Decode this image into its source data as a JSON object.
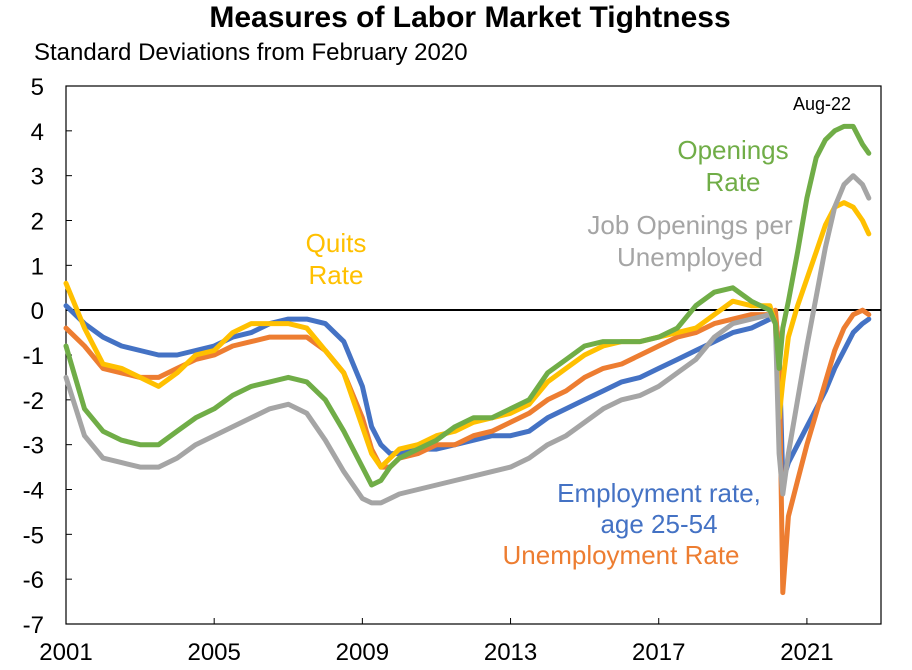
{
  "chart_data": {
    "type": "line",
    "title": "Measures of Labor Market Tightness",
    "subtitle": "Standard Deviations from February 2020",
    "ylim": [
      -7,
      5
    ],
    "yticks": [
      5,
      4,
      3,
      2,
      1,
      0,
      -1,
      -2,
      -3,
      -4,
      -5,
      -6,
      -7
    ],
    "xlim": [
      2001,
      2023
    ],
    "xticks": [
      2001,
      2005,
      2009,
      2013,
      2017,
      2021
    ],
    "series": [
      {
        "name": "Employment rate, age 25-54",
        "color": "#4472C4",
        "x": [
          2001.0,
          2001.5,
          2002.0,
          2002.5,
          2003.0,
          2003.5,
          2004.0,
          2004.5,
          2005.0,
          2005.5,
          2006.0,
          2006.5,
          2007.0,
          2007.5,
          2008.0,
          2008.5,
          2009.0,
          2009.25,
          2009.5,
          2009.75,
          2010.0,
          2010.5,
          2011.0,
          2011.5,
          2012.0,
          2012.5,
          2013.0,
          2013.5,
          2014.0,
          2014.5,
          2015.0,
          2015.5,
          2016.0,
          2016.5,
          2017.0,
          2017.5,
          2018.0,
          2018.5,
          2019.0,
          2019.5,
          2020.0,
          2020.15,
          2020.25,
          2020.35,
          2020.5,
          2020.75,
          2021.0,
          2021.25,
          2021.5,
          2021.75,
          2022.0,
          2022.25,
          2022.5,
          2022.67
        ],
        "values": [
          0.1,
          -0.3,
          -0.6,
          -0.8,
          -0.9,
          -1.0,
          -1.0,
          -0.9,
          -0.8,
          -0.6,
          -0.5,
          -0.3,
          -0.2,
          -0.2,
          -0.3,
          -0.7,
          -1.7,
          -2.6,
          -3.0,
          -3.2,
          -3.2,
          -3.1,
          -3.1,
          -3.0,
          -2.9,
          -2.8,
          -2.8,
          -2.7,
          -2.4,
          -2.2,
          -2.0,
          -1.8,
          -1.6,
          -1.5,
          -1.3,
          -1.1,
          -0.9,
          -0.7,
          -0.5,
          -0.4,
          -0.2,
          -0.1,
          -0.9,
          -3.8,
          -3.4,
          -3.0,
          -2.6,
          -2.2,
          -1.8,
          -1.3,
          -0.9,
          -0.5,
          -0.3,
          -0.2
        ]
      },
      {
        "name": "Unemployment Rate",
        "color": "#ED7D31",
        "x": [
          2001.0,
          2001.5,
          2002.0,
          2002.5,
          2003.0,
          2003.5,
          2004.0,
          2004.5,
          2005.0,
          2005.5,
          2006.0,
          2006.5,
          2007.0,
          2007.5,
          2008.0,
          2008.5,
          2009.0,
          2009.25,
          2009.5,
          2009.75,
          2010.0,
          2010.5,
          2011.0,
          2011.5,
          2012.0,
          2012.5,
          2013.0,
          2013.5,
          2014.0,
          2014.5,
          2015.0,
          2015.5,
          2016.0,
          2016.5,
          2017.0,
          2017.5,
          2018.0,
          2018.5,
          2019.0,
          2019.5,
          2020.0,
          2020.15,
          2020.25,
          2020.35,
          2020.5,
          2020.75,
          2021.0,
          2021.25,
          2021.5,
          2021.75,
          2022.0,
          2022.25,
          2022.5,
          2022.67
        ],
        "values": [
          -0.4,
          -0.8,
          -1.3,
          -1.4,
          -1.5,
          -1.5,
          -1.3,
          -1.1,
          -1.0,
          -0.8,
          -0.7,
          -0.6,
          -0.6,
          -0.6,
          -0.9,
          -1.4,
          -2.4,
          -3.1,
          -3.5,
          -3.5,
          -3.3,
          -3.2,
          -3.0,
          -3.0,
          -2.8,
          -2.7,
          -2.5,
          -2.3,
          -2.0,
          -1.8,
          -1.5,
          -1.3,
          -1.2,
          -1.0,
          -0.8,
          -0.6,
          -0.5,
          -0.3,
          -0.2,
          -0.1,
          -0.1,
          0.0,
          -1.0,
          -6.3,
          -4.6,
          -3.8,
          -3.0,
          -2.3,
          -1.6,
          -0.9,
          -0.4,
          -0.1,
          0.0,
          -0.1
        ]
      },
      {
        "name": "Quits Rate",
        "color": "#FFC000",
        "x": [
          2001.0,
          2001.5,
          2002.0,
          2002.5,
          2003.0,
          2003.5,
          2004.0,
          2004.5,
          2005.0,
          2005.5,
          2006.0,
          2006.5,
          2007.0,
          2007.5,
          2008.0,
          2008.5,
          2009.0,
          2009.25,
          2009.5,
          2009.75,
          2010.0,
          2010.5,
          2011.0,
          2011.5,
          2012.0,
          2012.5,
          2013.0,
          2013.5,
          2014.0,
          2014.5,
          2015.0,
          2015.5,
          2016.0,
          2016.5,
          2017.0,
          2017.5,
          2018.0,
          2018.5,
          2019.0,
          2019.5,
          2020.0,
          2020.15,
          2020.25,
          2020.35,
          2020.5,
          2020.75,
          2021.0,
          2021.25,
          2021.5,
          2021.75,
          2022.0,
          2022.25,
          2022.5,
          2022.67
        ],
        "values": [
          0.6,
          -0.4,
          -1.2,
          -1.3,
          -1.5,
          -1.7,
          -1.4,
          -1.0,
          -0.9,
          -0.5,
          -0.3,
          -0.3,
          -0.3,
          -0.4,
          -0.9,
          -1.4,
          -2.6,
          -3.2,
          -3.5,
          -3.3,
          -3.1,
          -3.0,
          -2.8,
          -2.7,
          -2.5,
          -2.4,
          -2.3,
          -2.1,
          -1.6,
          -1.3,
          -1.0,
          -0.8,
          -0.7,
          -0.7,
          -0.6,
          -0.5,
          -0.4,
          -0.1,
          0.2,
          0.1,
          0.1,
          -0.3,
          -2.4,
          -1.6,
          -0.6,
          0.1,
          0.7,
          1.3,
          1.9,
          2.3,
          2.4,
          2.3,
          2.0,
          1.7
        ]
      },
      {
        "name": "Job Openings per Unemployed",
        "color": "#A5A5A5",
        "x": [
          2001.0,
          2001.5,
          2002.0,
          2002.5,
          2003.0,
          2003.5,
          2004.0,
          2004.5,
          2005.0,
          2005.5,
          2006.0,
          2006.5,
          2007.0,
          2007.5,
          2008.0,
          2008.5,
          2009.0,
          2009.25,
          2009.5,
          2009.75,
          2010.0,
          2010.5,
          2011.0,
          2011.5,
          2012.0,
          2012.5,
          2013.0,
          2013.5,
          2014.0,
          2014.5,
          2015.0,
          2015.5,
          2016.0,
          2016.5,
          2017.0,
          2017.5,
          2018.0,
          2018.5,
          2019.0,
          2019.5,
          2020.0,
          2020.15,
          2020.25,
          2020.35,
          2020.5,
          2020.75,
          2021.0,
          2021.25,
          2021.5,
          2021.75,
          2022.0,
          2022.25,
          2022.5,
          2022.67
        ],
        "values": [
          -1.5,
          -2.8,
          -3.3,
          -3.4,
          -3.5,
          -3.5,
          -3.3,
          -3.0,
          -2.8,
          -2.6,
          -2.4,
          -2.2,
          -2.1,
          -2.3,
          -2.9,
          -3.6,
          -4.2,
          -4.3,
          -4.3,
          -4.2,
          -4.1,
          -4.0,
          -3.9,
          -3.8,
          -3.7,
          -3.6,
          -3.5,
          -3.3,
          -3.0,
          -2.8,
          -2.5,
          -2.2,
          -2.0,
          -1.9,
          -1.7,
          -1.4,
          -1.1,
          -0.6,
          -0.3,
          -0.2,
          -0.1,
          -0.3,
          -3.2,
          -4.1,
          -3.2,
          -2.0,
          -0.8,
          0.3,
          1.4,
          2.3,
          2.8,
          3.0,
          2.8,
          2.5
        ]
      },
      {
        "name": "Openings Rate",
        "color": "#70AD47",
        "x": [
          2001.0,
          2001.5,
          2002.0,
          2002.5,
          2003.0,
          2003.5,
          2004.0,
          2004.5,
          2005.0,
          2005.5,
          2006.0,
          2006.5,
          2007.0,
          2007.5,
          2008.0,
          2008.5,
          2009.0,
          2009.25,
          2009.5,
          2009.75,
          2010.0,
          2010.5,
          2011.0,
          2011.5,
          2012.0,
          2012.5,
          2013.0,
          2013.5,
          2014.0,
          2014.5,
          2015.0,
          2015.5,
          2016.0,
          2016.5,
          2017.0,
          2017.5,
          2018.0,
          2018.5,
          2019.0,
          2019.5,
          2020.0,
          2020.15,
          2020.25,
          2020.35,
          2020.5,
          2020.75,
          2021.0,
          2021.25,
          2021.5,
          2021.75,
          2022.0,
          2022.25,
          2022.5,
          2022.67
        ],
        "values": [
          -0.8,
          -2.2,
          -2.7,
          -2.9,
          -3.0,
          -3.0,
          -2.7,
          -2.4,
          -2.2,
          -1.9,
          -1.7,
          -1.6,
          -1.5,
          -1.6,
          -2.0,
          -2.7,
          -3.5,
          -3.9,
          -3.8,
          -3.5,
          -3.3,
          -3.1,
          -2.9,
          -2.6,
          -2.4,
          -2.4,
          -2.2,
          -2.0,
          -1.4,
          -1.1,
          -0.8,
          -0.7,
          -0.7,
          -0.7,
          -0.6,
          -0.4,
          0.1,
          0.4,
          0.5,
          0.2,
          0.0,
          -0.3,
          -1.3,
          -0.4,
          0.2,
          1.3,
          2.5,
          3.4,
          3.8,
          4.0,
          4.1,
          4.1,
          3.7,
          3.5
        ]
      }
    ],
    "annotations": {
      "aug22": "Aug-22",
      "openings_1": "Openings",
      "openings_2": "Rate",
      "quits_1": "Quits",
      "quits_2": "Rate",
      "jobs_1": "Job Openings per",
      "jobs_2": "Unemployed",
      "emp_1": "Employment rate,",
      "emp_2": "age 25-54",
      "unemp": "Unemployment Rate"
    }
  }
}
